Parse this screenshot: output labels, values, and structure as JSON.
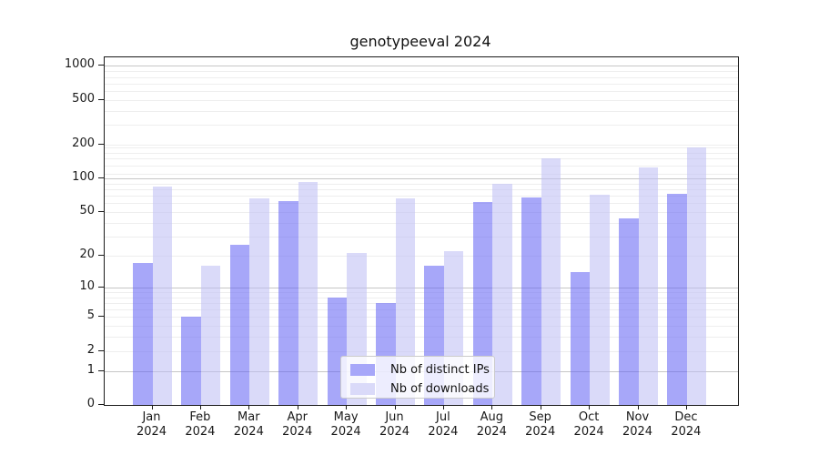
{
  "chart_data": {
    "type": "bar",
    "title": "genotypeeval 2024",
    "categories": [
      "Jan 2024",
      "Feb 2024",
      "Mar 2024",
      "Apr 2024",
      "May 2024",
      "Jun 2024",
      "Jul 2024",
      "Aug 2024",
      "Sep 2024",
      "Oct 2024",
      "Nov 2024",
      "Dec 2024"
    ],
    "series": [
      {
        "name": "Nb of distinct IPs",
        "color": "#a7a7f9",
        "fill_rgba": "rgba(100,100,245,0.57)",
        "values": [
          17,
          5,
          25,
          63,
          8,
          7,
          16,
          62,
          68,
          14,
          44,
          73
        ]
      },
      {
        "name": "Nb of downloads",
        "color": "#dadaf9",
        "fill_rgba": "rgba(190,190,245,0.57)",
        "values": [
          85,
          16,
          66,
          93,
          21,
          66,
          22,
          90,
          152,
          72,
          125,
          190
        ]
      }
    ],
    "xlabel": "",
    "ylabel": "",
    "yscale": "log10(value+1)",
    "yticks": [
      0,
      1,
      2,
      5,
      10,
      20,
      50,
      100,
      200,
      500,
      1000
    ],
    "ylim": [
      0,
      1200
    ],
    "grid": true,
    "legend_position": "inside lower center"
  }
}
